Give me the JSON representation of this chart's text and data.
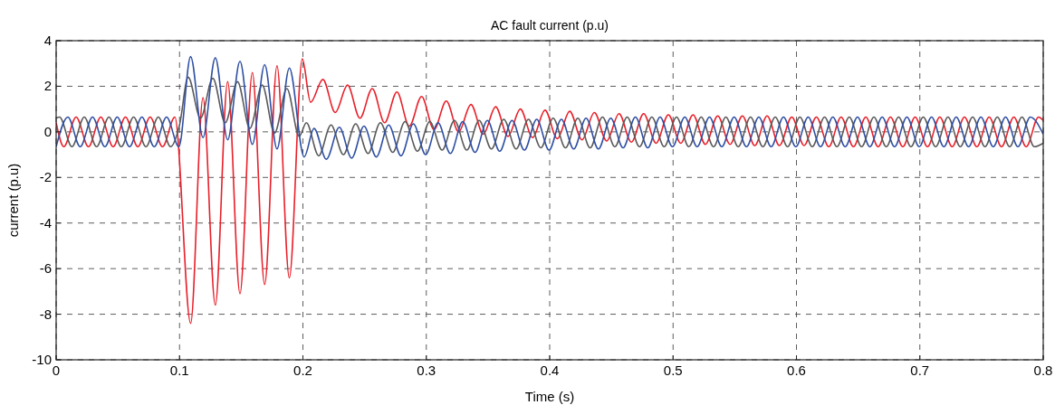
{
  "chart_data": {
    "type": "line",
    "title": "AC fault current (p.u)",
    "xlabel": "Time (s)",
    "ylabel": "current (p.u)",
    "xlim": [
      0,
      0.8
    ],
    "xticks": [
      0,
      0.1,
      0.2,
      0.3,
      0.4,
      0.5,
      0.6,
      0.7,
      0.8
    ],
    "ylim": [
      -10,
      4
    ],
    "yticks": [
      -10,
      -8,
      -6,
      -4,
      -2,
      0,
      2,
      4
    ],
    "grid": true,
    "line_style": "solid",
    "series": [
      {
        "color": "#e8202a",
        "x": [
          0,
          0.0062,
          0.0162,
          0.0262,
          0.0362,
          0.0462,
          0.0562,
          0.0662,
          0.0762,
          0.0862,
          0.0962,
          0.109,
          0.119,
          0.129,
          0.139,
          0.149,
          0.159,
          0.169,
          0.179,
          0.189,
          0.1995,
          0.2062,
          0.2162,
          0.2262,
          0.2362,
          0.2462,
          0.2562,
          0.2662,
          0.2762,
          0.2862,
          0.2962,
          0.3062,
          0.3162,
          0.3262,
          0.3362,
          0.3462,
          0.3562,
          0.3662,
          0.3762,
          0.3862,
          0.3962,
          0.4062,
          0.4162,
          0.4262,
          0.4362,
          0.4462,
          0.4562,
          0.4662,
          0.4762,
          0.4862,
          0.4962,
          0.5062,
          0.5162,
          0.5262,
          0.5362,
          0.5462,
          0.5562,
          0.5662,
          0.5762,
          0.5862,
          0.5962,
          0.6062,
          0.6162,
          0.6262,
          0.6362,
          0.6462,
          0.6562,
          0.6662,
          0.6762,
          0.6862,
          0.6962,
          0.7062,
          0.7162,
          0.7262,
          0.7362,
          0.7462,
          0.7562,
          0.7662,
          0.7762,
          0.7862,
          0.7962,
          0.8
        ],
        "values": [
          0.4,
          -0.65,
          0.65,
          -0.65,
          0.65,
          -0.65,
          0.65,
          -0.65,
          0.65,
          -0.65,
          0.65,
          -8.4,
          1.5,
          -7.6,
          2.2,
          -7.1,
          2.6,
          -6.7,
          2.9,
          -6.4,
          3.2,
          1.3,
          2.3,
          0.85,
          2.05,
          0.6,
          1.9,
          0.4,
          1.75,
          0.25,
          1.55,
          0.1,
          1.35,
          0,
          1.2,
          -0.1,
          1.1,
          -0.2,
          1.0,
          -0.25,
          0.95,
          -0.3,
          0.9,
          -0.35,
          0.85,
          -0.4,
          0.8,
          -0.45,
          0.8,
          -0.5,
          0.75,
          -0.5,
          0.75,
          -0.55,
          0.7,
          -0.55,
          0.7,
          -0.6,
          0.7,
          -0.6,
          0.65,
          -0.6,
          0.65,
          -0.65,
          0.65,
          -0.65,
          0.65,
          -0.65,
          0.65,
          -0.65,
          0.65,
          -0.65,
          0.65,
          -0.65,
          0.65,
          -0.65,
          0.65,
          -0.65,
          0.65,
          -0.65,
          0.65,
          0.5
        ]
      },
      {
        "color": "#5a5a5a",
        "x": [
          0,
          0.0028,
          0.0128,
          0.0228,
          0.0328,
          0.0428,
          0.0528,
          0.0628,
          0.0728,
          0.0828,
          0.0928,
          0.1,
          0.107,
          0.117,
          0.127,
          0.137,
          0.147,
          0.157,
          0.167,
          0.177,
          0.187,
          0.197,
          0.2028,
          0.2128,
          0.2228,
          0.2328,
          0.2428,
          0.2528,
          0.2628,
          0.2728,
          0.2828,
          0.2928,
          0.3028,
          0.3128,
          0.3228,
          0.3328,
          0.3428,
          0.3528,
          0.3628,
          0.3728,
          0.3828,
          0.3928,
          0.4028,
          0.4128,
          0.4228,
          0.4328,
          0.4428,
          0.4528,
          0.4628,
          0.4728,
          0.4828,
          0.4928,
          0.5028,
          0.5128,
          0.5228,
          0.5328,
          0.5428,
          0.5528,
          0.5628,
          0.5728,
          0.5828,
          0.5928,
          0.6028,
          0.6128,
          0.6228,
          0.6328,
          0.6428,
          0.6528,
          0.6628,
          0.6728,
          0.6828,
          0.6928,
          0.7028,
          0.7128,
          0.7228,
          0.7328,
          0.7428,
          0.7528,
          0.7628,
          0.7728,
          0.7828,
          0.7928,
          0.8
        ],
        "values": [
          0.6,
          0.65,
          -0.65,
          0.65,
          -0.65,
          0.65,
          -0.65,
          0.65,
          -0.65,
          0.65,
          -0.65,
          0.3,
          2.4,
          0.6,
          2.35,
          0.4,
          2.2,
          0.15,
          2.05,
          -0.05,
          1.9,
          -0.2,
          0.4,
          -1.05,
          0.3,
          -1.0,
          0.35,
          -0.95,
          0.4,
          -0.9,
          0.45,
          -0.85,
          0.45,
          -0.8,
          0.5,
          -0.8,
          0.5,
          -0.75,
          0.55,
          -0.75,
          0.55,
          -0.7,
          0.6,
          -0.7,
          0.6,
          -0.7,
          0.65,
          -0.65,
          0.65,
          -0.65,
          0.65,
          -0.65,
          0.65,
          -0.65,
          0.65,
          -0.65,
          0.65,
          -0.65,
          0.65,
          -0.65,
          0.65,
          -0.65,
          0.65,
          -0.65,
          0.65,
          -0.65,
          0.65,
          -0.65,
          0.65,
          -0.65,
          0.65,
          -0.65,
          0.65,
          -0.65,
          0.65,
          -0.65,
          0.65,
          -0.65,
          0.65,
          -0.65,
          0.65,
          -0.65,
          -0.5
        ]
      },
      {
        "color": "#2e4fa3",
        "x": [
          0,
          0.0095,
          0.0195,
          0.0295,
          0.0395,
          0.0495,
          0.0595,
          0.0695,
          0.0795,
          0.0895,
          0.0995,
          0.109,
          0.119,
          0.129,
          0.139,
          0.149,
          0.159,
          0.169,
          0.179,
          0.189,
          0.201,
          0.209,
          0.219,
          0.2295,
          0.2395,
          0.2495,
          0.2595,
          0.2695,
          0.2795,
          0.2895,
          0.2995,
          0.3095,
          0.3195,
          0.3295,
          0.3395,
          0.3495,
          0.3595,
          0.3695,
          0.3795,
          0.3895,
          0.3995,
          0.4095,
          0.4195,
          0.4295,
          0.4395,
          0.4495,
          0.4595,
          0.4695,
          0.4795,
          0.4895,
          0.4995,
          0.5095,
          0.5195,
          0.5295,
          0.5395,
          0.5495,
          0.5595,
          0.5695,
          0.5795,
          0.5895,
          0.5995,
          0.6095,
          0.6195,
          0.6295,
          0.6395,
          0.6495,
          0.6595,
          0.6695,
          0.6795,
          0.6895,
          0.6995,
          0.7095,
          0.7195,
          0.7295,
          0.7395,
          0.7495,
          0.7595,
          0.7695,
          0.7795,
          0.7895,
          0.8
        ],
        "values": [
          -0.65,
          0.65,
          -0.65,
          0.65,
          -0.65,
          0.65,
          -0.65,
          0.65,
          -0.65,
          0.65,
          -0.65,
          3.3,
          -0.25,
          3.25,
          -0.35,
          3.1,
          -0.55,
          2.95,
          -0.75,
          2.8,
          -1.1,
          0.15,
          -1.2,
          0.2,
          -1.15,
          0.25,
          -1.1,
          0.3,
          -1.05,
          0.35,
          -1.0,
          0.4,
          -0.95,
          0.45,
          -0.9,
          0.5,
          -0.85,
          0.5,
          -0.8,
          0.55,
          -0.8,
          0.55,
          -0.75,
          0.6,
          -0.75,
          0.6,
          -0.7,
          0.65,
          -0.7,
          0.65,
          -0.65,
          0.65,
          -0.65,
          0.65,
          -0.65,
          0.65,
          -0.65,
          0.65,
          -0.65,
          0.65,
          -0.65,
          0.65,
          -0.65,
          0.65,
          -0.65,
          0.65,
          -0.65,
          0.65,
          -0.65,
          0.65,
          -0.65,
          0.65,
          -0.65,
          0.65,
          -0.65,
          0.65,
          -0.65,
          0.65,
          -0.65,
          0.65,
          -0.1
        ]
      }
    ]
  }
}
